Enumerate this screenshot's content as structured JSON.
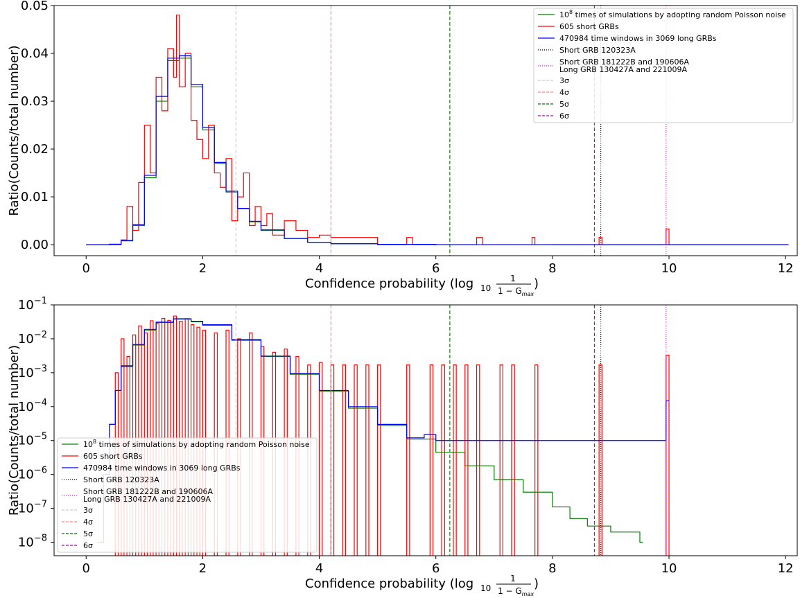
{
  "chart_data": [
    {
      "type": "line",
      "panel": "linear",
      "xlabel": "Confidence probability (log",
      "xlabel_sub": "10",
      "frac_num": "1",
      "frac_den": "1 − G",
      "frac_den_sub": "max",
      "ylabel": "Ratio(Counts/total number)",
      "xlim": [
        -0.55,
        12.2
      ],
      "ylim": [
        -0.0023,
        0.05
      ],
      "xticks": [
        0,
        2,
        4,
        6,
        8,
        10,
        12
      ],
      "xtick_labels": [
        "0",
        "2",
        "4",
        "6",
        "8",
        "10",
        "12"
      ],
      "yticks": [
        0.0,
        0.01,
        0.02,
        0.03,
        0.04,
        0.05
      ],
      "ytick_labels": [
        "0.00",
        "0.01",
        "0.02",
        "0.03",
        "0.04",
        "0.05"
      ],
      "legend_position": "top-right",
      "series": [
        {
          "name": "10^8 times of simulations by adopting random Poisson noise",
          "color": "#008000",
          "style": "step",
          "x": [
            0,
            0.4,
            0.6,
            0.8,
            1.0,
            1.2,
            1.4,
            1.6,
            1.8,
            2.0,
            2.2,
            2.4,
            2.6,
            2.8,
            3.0,
            3.4,
            3.8,
            4.2,
            5,
            6,
            8,
            12
          ],
          "values": [
            0,
            0.0001,
            0.0008,
            0.004,
            0.014,
            0.03,
            0.0385,
            0.039,
            0.033,
            0.024,
            0.017,
            0.011,
            0.0075,
            0.0048,
            0.003,
            0.0013,
            0.0005,
            0.0002,
            5e-05,
            1e-05,
            0,
            0
          ]
        },
        {
          "name": "605 short GRBs",
          "color": "#ff0000",
          "style": "step",
          "x": [
            0,
            0.6,
            0.7,
            0.8,
            0.9,
            1.0,
            1.1,
            1.2,
            1.3,
            1.4,
            1.5,
            1.55,
            1.6,
            1.7,
            1.8,
            1.9,
            2.0,
            2.1,
            2.2,
            2.3,
            2.4,
            2.5,
            2.6,
            2.7,
            2.8,
            2.9,
            3.0,
            3.1,
            3.2,
            3.4,
            3.6,
            3.8,
            4.0,
            4.2,
            4.4,
            4.6,
            5.0,
            5.5,
            5.6,
            6.7,
            6.8,
            7.65,
            7.7,
            8.8,
            8.85,
            9.95,
            10.0,
            12
          ],
          "values": [
            0,
            0.001,
            0.008,
            0.003,
            0.013,
            0.025,
            0.015,
            0.035,
            0.028,
            0.041,
            0.035,
            0.048,
            0.033,
            0.04,
            0.026,
            0.022,
            0.018,
            0.025,
            0.015,
            0.012,
            0.018,
            0.005,
            0.01,
            0.015,
            0.004,
            0.008,
            0.004,
            0.0065,
            0.002,
            0.005,
            0.003,
            0.0015,
            0.002,
            0.0015,
            0.0015,
            0.0015,
            0,
            0.0015,
            0,
            0.0015,
            0,
            0.0015,
            0,
            0.0015,
            0,
            0.0033,
            0,
            0
          ]
        },
        {
          "name": "470984 time windows in 3069 long GRBs",
          "color": "#0000ff",
          "style": "step",
          "x": [
            0,
            0.4,
            0.6,
            0.8,
            1.0,
            1.2,
            1.4,
            1.6,
            1.8,
            2.0,
            2.2,
            2.4,
            2.6,
            2.8,
            3.0,
            3.4,
            3.8,
            4.2,
            5,
            6,
            8,
            12
          ],
          "values": [
            0,
            0.0001,
            0.0009,
            0.0042,
            0.0145,
            0.031,
            0.039,
            0.0395,
            0.0335,
            0.0245,
            0.0172,
            0.0112,
            0.0076,
            0.0049,
            0.0031,
            0.0013,
            0.0005,
            0.0002,
            5e-05,
            1e-05,
            0,
            0
          ]
        }
      ],
      "vlines": [
        {
          "name": "Short GRB 120323A",
          "x": 8.83,
          "color": "#000000",
          "dash": "1,2"
        },
        {
          "name": "Short GRB 181222B and 190606A",
          "name2": "Long GRB 130427A and 221009A",
          "x": 9.95,
          "color": "#ff00ff",
          "dash": "1,2"
        },
        {
          "name": "3σ",
          "x": 2.57,
          "color": "#cccccc",
          "dash": "5,3"
        },
        {
          "name": "4σ",
          "x": 4.2,
          "color": "#ff8080",
          "dash": "5,3"
        },
        {
          "name": "5σ",
          "x": 6.24,
          "color": "#007000",
          "dash": "5,3"
        },
        {
          "name": "6σ",
          "x": 8.72,
          "color": "#aa00aa",
          "dash": "5,3"
        }
      ]
    },
    {
      "type": "line",
      "panel": "log",
      "xlabel": "Confidence probability (log",
      "xlabel_sub": "10",
      "frac_num": "1",
      "frac_den": "1 − G",
      "frac_den_sub": "max",
      "ylabel": "Ratio(Counts/total number)",
      "yscale": "log",
      "xlim": [
        -0.55,
        12.2
      ],
      "ylim": [
        4e-09,
        0.1
      ],
      "xticks": [
        0,
        2,
        4,
        6,
        8,
        10,
        12
      ],
      "xtick_labels": [
        "0",
        "2",
        "4",
        "6",
        "8",
        "10",
        "12"
      ],
      "yticks": [
        1e-08,
        1e-07,
        1e-06,
        1e-05,
        0.0001,
        0.001,
        0.01,
        0.1
      ],
      "ytick_exponents": [
        "−8",
        "−7",
        "−6",
        "−5",
        "−4",
        "−3",
        "−2",
        "−1"
      ],
      "ytick_base": "10",
      "legend_position": "bottom-left",
      "series": [
        {
          "name": "10^8 times of simulations by adopting random Poisson noise",
          "color": "#008000",
          "style": "step",
          "x": [
            0.2,
            0.3,
            0.4,
            0.5,
            0.6,
            0.8,
            1.0,
            1.2,
            1.5,
            1.8,
            2.0,
            2.5,
            3.0,
            3.5,
            4.0,
            4.5,
            5.0,
            5.5,
            6.0,
            6.5,
            7.0,
            7.5,
            8.0,
            8.3,
            8.6,
            9.0,
            9.5
          ],
          "values": [
            1e-08,
            1e-06,
            3e-05,
            0.0003,
            0.0015,
            0.0065,
            0.018,
            0.03,
            0.038,
            0.032,
            0.025,
            0.009,
            0.003,
            0.0009,
            0.00028,
            9e-05,
            2.8e-05,
            1.1e-05,
            4.5e-06,
            1.8e-06,
            7e-07,
            3e-07,
            1.1e-07,
            5e-08,
            3e-08,
            2e-08,
            1e-08
          ]
        },
        {
          "name": "605 short GRBs",
          "color": "#ff0000",
          "style": "spikes",
          "x": [
            0.5,
            0.6,
            0.7,
            0.8,
            0.9,
            1.0,
            1.1,
            1.2,
            1.3,
            1.4,
            1.5,
            1.6,
            1.7,
            1.8,
            1.9,
            2.0,
            2.2,
            2.4,
            2.6,
            2.8,
            3.0,
            3.2,
            3.4,
            3.6,
            3.8,
            4.0,
            4.2,
            4.4,
            4.6,
            4.8,
            5.0,
            5.5,
            5.9,
            6.1,
            6.3,
            6.5,
            6.7,
            7.1,
            7.3,
            7.7,
            8.8,
            9.95
          ],
          "values": [
            0.001,
            0.01,
            0.003,
            0.013,
            0.024,
            0.015,
            0.034,
            0.028,
            0.04,
            0.035,
            0.047,
            0.033,
            0.039,
            0.026,
            0.022,
            0.018,
            0.015,
            0.018,
            0.01,
            0.015,
            0.006,
            0.004,
            0.005,
            0.003,
            0.0017,
            0.002,
            0.0017,
            0.0017,
            0.0017,
            0.0017,
            0.0017,
            0.0017,
            0.0017,
            0.0017,
            0.0017,
            0.0017,
            0.0017,
            0.0017,
            0.0017,
            0.0017,
            0.0017,
            0.0033
          ]
        },
        {
          "name": "470984 time windows in 3069 long GRBs",
          "color": "#0000ff",
          "style": "step",
          "x": [
            0.3,
            0.4,
            0.5,
            0.6,
            0.8,
            1.0,
            1.2,
            1.5,
            1.8,
            2.0,
            2.5,
            3.0,
            3.5,
            4.0,
            4.5,
            5.0,
            5.5,
            5.8,
            6.0,
            6.5,
            7.0,
            7.5,
            8.0,
            8.3,
            8.6,
            9.0,
            9.95
          ],
          "values": [
            1e-06,
            3e-05,
            0.0003,
            0.0016,
            0.0068,
            0.019,
            0.031,
            0.039,
            0.033,
            0.026,
            0.0095,
            0.0031,
            0.00095,
            0.0003,
            0.0001,
            3e-05,
            1.2e-05,
            1.5e-05,
            1e-05,
            1e-05,
            1e-05,
            1e-05,
            1e-05,
            1e-05,
            1e-05,
            1e-05,
            0.00015
          ]
        }
      ],
      "vlines": [
        {
          "name": "Short GRB 120323A",
          "x": 8.83,
          "color": "#000000",
          "dash": "1,2"
        },
        {
          "name": "Short GRB 181222B and 190606A",
          "name2": "Long GRB 130427A and 221009A",
          "x": 9.95,
          "color": "#ff00ff",
          "dash": "1,2"
        },
        {
          "name": "3σ",
          "x": 2.57,
          "color": "#cccccc",
          "dash": "5,3"
        },
        {
          "name": "4σ",
          "x": 4.2,
          "color": "#ff8080",
          "dash": "5,3"
        },
        {
          "name": "5σ",
          "x": 6.24,
          "color": "#007000",
          "dash": "5,3"
        },
        {
          "name": "6σ",
          "x": 8.72,
          "color": "#aa00aa",
          "dash": "5,3"
        }
      ]
    }
  ],
  "legend": {
    "sim_base": "10",
    "sim_exp": "8",
    "sim_rest": " times of simulations by adopting random Poisson noise",
    "short": "605 short GRBs",
    "long": "470984 time windows in 3069 long GRBs",
    "grb120323a": "Short GRB 120323A",
    "magenta_1": "Short GRB 181222B and 190606A",
    "magenta_2": "Long GRB 130427A and 221009A",
    "s3": "3σ",
    "s4": "4σ",
    "s5": "5σ",
    "s6": "6σ"
  }
}
